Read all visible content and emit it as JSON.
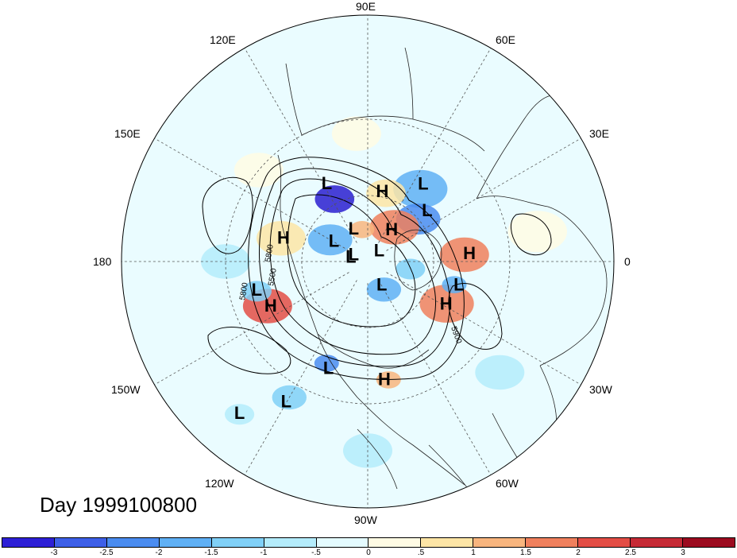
{
  "title": "Day 1999100800",
  "lon_labels": [
    "90E",
    "60E",
    "30E",
    "0",
    "30W",
    "60W",
    "90W",
    "120W",
    "150W",
    "180",
    "150E",
    "120E"
  ],
  "contour_labels": [
    "5800",
    "5500",
    "5800",
    "5900"
  ],
  "pressure_centers": [
    {
      "type": "H",
      "lon": 78,
      "lat": 58
    },
    {
      "type": "L",
      "lon": 54,
      "lat": 48
    },
    {
      "type": "L",
      "lon": 118,
      "lat": 51
    },
    {
      "type": "L",
      "lon": 40,
      "lat": 55
    },
    {
      "type": "H",
      "lon": 52,
      "lat": 72
    },
    {
      "type": "H",
      "lon": 4,
      "lat": 45
    },
    {
      "type": "L",
      "lon": -15,
      "lat": 48
    },
    {
      "type": "H",
      "lon": 165,
      "lat": 51
    },
    {
      "type": "L",
      "lon": 150,
      "lat": 72
    },
    {
      "type": "L",
      "lon": 114,
      "lat": 74
    },
    {
      "type": "L",
      "lon": 158,
      "lat": 83
    },
    {
      "type": "L",
      "lon": 40,
      "lat": 83
    },
    {
      "type": "L",
      "lon": 168,
      "lat": 82
    },
    {
      "type": "H",
      "lon": -29,
      "lat": 50
    },
    {
      "type": "L",
      "lon": -60,
      "lat": 77
    },
    {
      "type": "L",
      "lon": -165,
      "lat": 40
    },
    {
      "type": "H",
      "lon": -155,
      "lat": 43
    },
    {
      "type": "L",
      "lon": -110,
      "lat": 40
    },
    {
      "type": "H",
      "lon": -82,
      "lat": 38
    },
    {
      "type": "L",
      "lon": -120,
      "lat": 23
    },
    {
      "type": "L",
      "lon": -130,
      "lat": 12
    }
  ],
  "colorbar": {
    "ticks": [
      "-3",
      "-2.5",
      "-2",
      "-1.5",
      "-1",
      "-.5",
      "0",
      ".5",
      "1",
      "1.5",
      "2",
      "2.5",
      "3"
    ],
    "colors": [
      "#2d1fd6",
      "#3d5fe8",
      "#4a8cf0",
      "#5fb0f5",
      "#80d0f7",
      "#b4ecfb",
      "#e4fbff",
      "#fffbe4",
      "#fde5a6",
      "#f8b57e",
      "#f0805d",
      "#e34d45",
      "#c62a35",
      "#9c0b1f"
    ]
  },
  "anomaly_blobs": [
    {
      "lon": 118,
      "lat": 58,
      "r": 0.08,
      "color": "#2a1fd0"
    },
    {
      "lon": 54,
      "lat": 50,
      "r": 0.11,
      "color": "#5fb0f5"
    },
    {
      "lon": 40,
      "lat": 60,
      "r": 0.09,
      "color": "#4a8cf0"
    },
    {
      "lon": 75,
      "lat": 58,
      "r": 0.08,
      "color": "#fde5a6"
    },
    {
      "lon": 52,
      "lat": 70,
      "r": 0.1,
      "color": "#f0805d"
    },
    {
      "lon": 4,
      "lat": 47,
      "r": 0.1,
      "color": "#f0805d"
    },
    {
      "lon": -28,
      "lat": 50,
      "r": 0.11,
      "color": "#f0805d"
    },
    {
      "lon": -156,
      "lat": 42,
      "r": 0.1,
      "color": "#e34d45"
    },
    {
      "lon": -112,
      "lat": 42,
      "r": 0.05,
      "color": "#4a8cf0"
    },
    {
      "lon": -80,
      "lat": 38,
      "r": 0.05,
      "color": "#f8b57e"
    },
    {
      "lon": 150,
      "lat": 70,
      "r": 0.09,
      "color": "#5fb0f5"
    },
    {
      "lon": 165,
      "lat": 50,
      "r": 0.1,
      "color": "#fde5a6"
    },
    {
      "lon": -60,
      "lat": 75,
      "r": 0.07,
      "color": "#5fb0f5"
    },
    {
      "lon": -15,
      "lat": 50,
      "r": 0.05,
      "color": "#5fb0f5"
    },
    {
      "lon": -120,
      "lat": 25,
      "r": 0.07,
      "color": "#80d0f7"
    },
    {
      "lon": -130,
      "lat": 12,
      "r": 0.06,
      "color": "#b4ecfb"
    },
    {
      "lon": -165,
      "lat": 40,
      "r": 0.06,
      "color": "#80d0f7"
    },
    {
      "lon": 95,
      "lat": 35,
      "r": 0.1,
      "color": "#fffbe4"
    },
    {
      "lon": 10,
      "lat": 20,
      "r": 0.12,
      "color": "#fffbe4"
    },
    {
      "lon": -40,
      "lat": 20,
      "r": 0.1,
      "color": "#b4ecfb"
    },
    {
      "lon": -90,
      "lat": 15,
      "r": 0.1,
      "color": "#b4ecfb"
    },
    {
      "lon": -180,
      "lat": 30,
      "r": 0.1,
      "color": "#b4ecfb"
    },
    {
      "lon": 140,
      "lat": 30,
      "r": 0.1,
      "color": "#fffbe4"
    },
    {
      "lon": -10,
      "lat": 70,
      "r": 0.06,
      "color": "#80d0f7"
    },
    {
      "lon": 100,
      "lat": 75,
      "r": 0.05,
      "color": "#f8b57e"
    }
  ]
}
